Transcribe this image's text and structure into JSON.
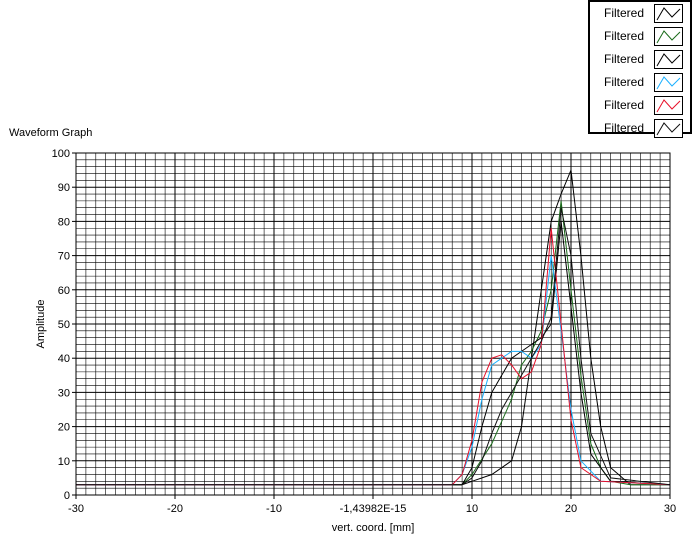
{
  "chart_data": {
    "type": "line",
    "title": "Waveform Graph",
    "xlabel": "vert. coord. [mm]",
    "ylabel": "Amplitude",
    "xlim": [
      -30,
      30
    ],
    "ylim": [
      0,
      100
    ],
    "x_ticks": [
      "-30",
      "-20",
      "-10",
      "-1,43982E-15",
      "10",
      "20",
      "30"
    ],
    "x_tick_values": [
      -30,
      -20,
      -10,
      0,
      10,
      20,
      30
    ],
    "y_ticks": [
      "0",
      "10",
      "20",
      "30",
      "40",
      "50",
      "60",
      "70",
      "80",
      "90",
      "100"
    ],
    "y_tick_values": [
      0,
      10,
      20,
      30,
      40,
      50,
      60,
      70,
      80,
      90,
      100
    ],
    "grid": true,
    "legend_position": "top-right",
    "series": [
      {
        "name": "Filtered",
        "color": "#000000",
        "x": [
          -30,
          -20,
          -10,
          0,
          9,
          10,
          12,
          14,
          15,
          16,
          17,
          18,
          19,
          20,
          21,
          22,
          23,
          24,
          26,
          30
        ],
        "y": [
          3,
          3,
          3,
          3,
          3,
          4,
          6,
          10,
          20,
          40,
          60,
          80,
          88,
          95,
          70,
          40,
          20,
          8,
          3,
          3
        ]
      },
      {
        "name": "Filtered",
        "color": "#1a6b1a",
        "x": [
          -30,
          -20,
          -10,
          0,
          9,
          10,
          12,
          14,
          15,
          16,
          17,
          18,
          19,
          20,
          21,
          22,
          23,
          24,
          26,
          30
        ],
        "y": [
          3,
          3,
          3,
          3,
          3,
          6,
          15,
          28,
          38,
          42,
          48,
          60,
          86,
          60,
          35,
          15,
          8,
          4,
          3,
          3
        ]
      },
      {
        "name": "Filtered",
        "color": "#000000",
        "x": [
          -30,
          -20,
          -10,
          0,
          9,
          10,
          11,
          12,
          13,
          14,
          15,
          16,
          17,
          18,
          19,
          20,
          21,
          22,
          24,
          30
        ],
        "y": [
          3,
          3,
          3,
          3,
          3,
          8,
          20,
          30,
          35,
          40,
          42,
          44,
          46,
          50,
          80,
          55,
          30,
          12,
          4,
          3
        ]
      },
      {
        "name": "Filtered",
        "color": "#1ab0ff",
        "x": [
          -30,
          -20,
          -10,
          0,
          8,
          9,
          10,
          11,
          12,
          13,
          14,
          15,
          16,
          17,
          18,
          19,
          20,
          21,
          23,
          30
        ],
        "y": [
          3,
          3,
          3,
          3,
          3,
          6,
          14,
          28,
          38,
          40,
          42,
          42,
          40,
          44,
          70,
          48,
          25,
          10,
          4,
          3
        ]
      },
      {
        "name": "Filtered",
        "color": "#e8102a",
        "x": [
          -30,
          -20,
          -10,
          0,
          8,
          9,
          10,
          11,
          12,
          13,
          14,
          15,
          16,
          17,
          18,
          19,
          20,
          21,
          23,
          30
        ],
        "y": [
          3,
          3,
          3,
          3,
          3,
          6,
          16,
          33,
          40,
          41,
          38,
          34,
          36,
          44,
          78,
          50,
          22,
          8,
          4,
          3
        ]
      },
      {
        "name": "Filtered",
        "color": "#111111",
        "x": [
          -30,
          -20,
          -10,
          0,
          9,
          10,
          11,
          12,
          13,
          14,
          15,
          16,
          17,
          18,
          19,
          20,
          21,
          22,
          24,
          30
        ],
        "y": [
          3,
          3,
          3,
          3,
          3,
          5,
          10,
          18,
          25,
          30,
          35,
          40,
          45,
          52,
          84,
          70,
          40,
          18,
          5,
          3
        ]
      }
    ]
  }
}
